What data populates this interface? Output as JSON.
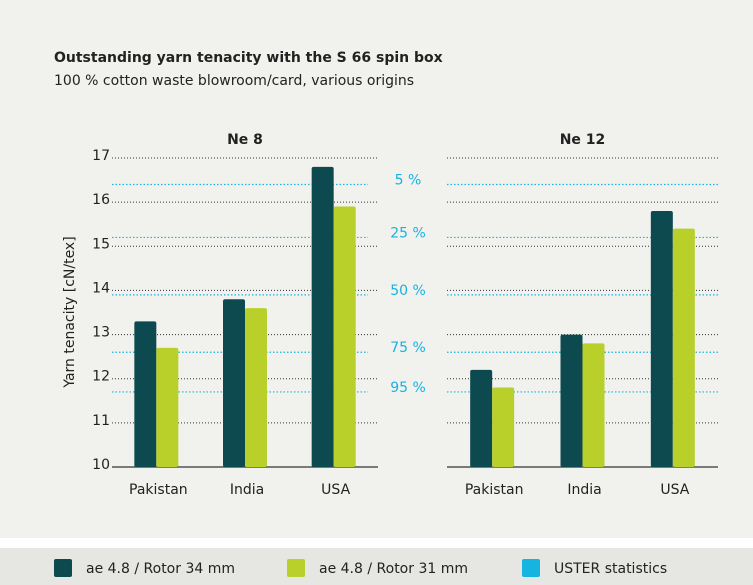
{
  "chart_data": {
    "type": "bar",
    "title": "Outstanding yarn tenacity with the S 66 spin box",
    "subtitle": "100 % cotton waste blowroom/card, various origins",
    "y_label": "Yarn tenacity [cN/tex]",
    "ylim": [
      10,
      17
    ],
    "yticks": [
      10,
      11,
      12,
      13,
      14,
      15,
      16,
      17
    ],
    "grid": true,
    "categories": [
      "Pakistan",
      "India",
      "USA"
    ],
    "series": [
      {
        "name": "ae 4.8 / Rotor 34 mm",
        "color": "#0d4a4f"
      },
      {
        "name": "ae 4.8 / Rotor 31 mm",
        "color": "#b9cf2a"
      }
    ],
    "uster": {
      "name": "USTER statistics",
      "color": "#16b4e0",
      "labels": [
        "5 %",
        "25 %",
        "50 %",
        "75 %",
        "95 %"
      ]
    },
    "panels": [
      {
        "title": "Ne 8",
        "values": [
          [
            13.3,
            13.8,
            16.8
          ],
          [
            12.7,
            13.6,
            15.9
          ]
        ],
        "uster_values": [
          16.4,
          15.2,
          13.9,
          12.6,
          11.7
        ]
      },
      {
        "title": "Ne 12",
        "values": [
          [
            12.2,
            13.0,
            15.8
          ],
          [
            11.8,
            12.8,
            15.4
          ]
        ],
        "uster_values": [
          16.4,
          15.2,
          13.9,
          12.6,
          11.7
        ]
      }
    ]
  }
}
